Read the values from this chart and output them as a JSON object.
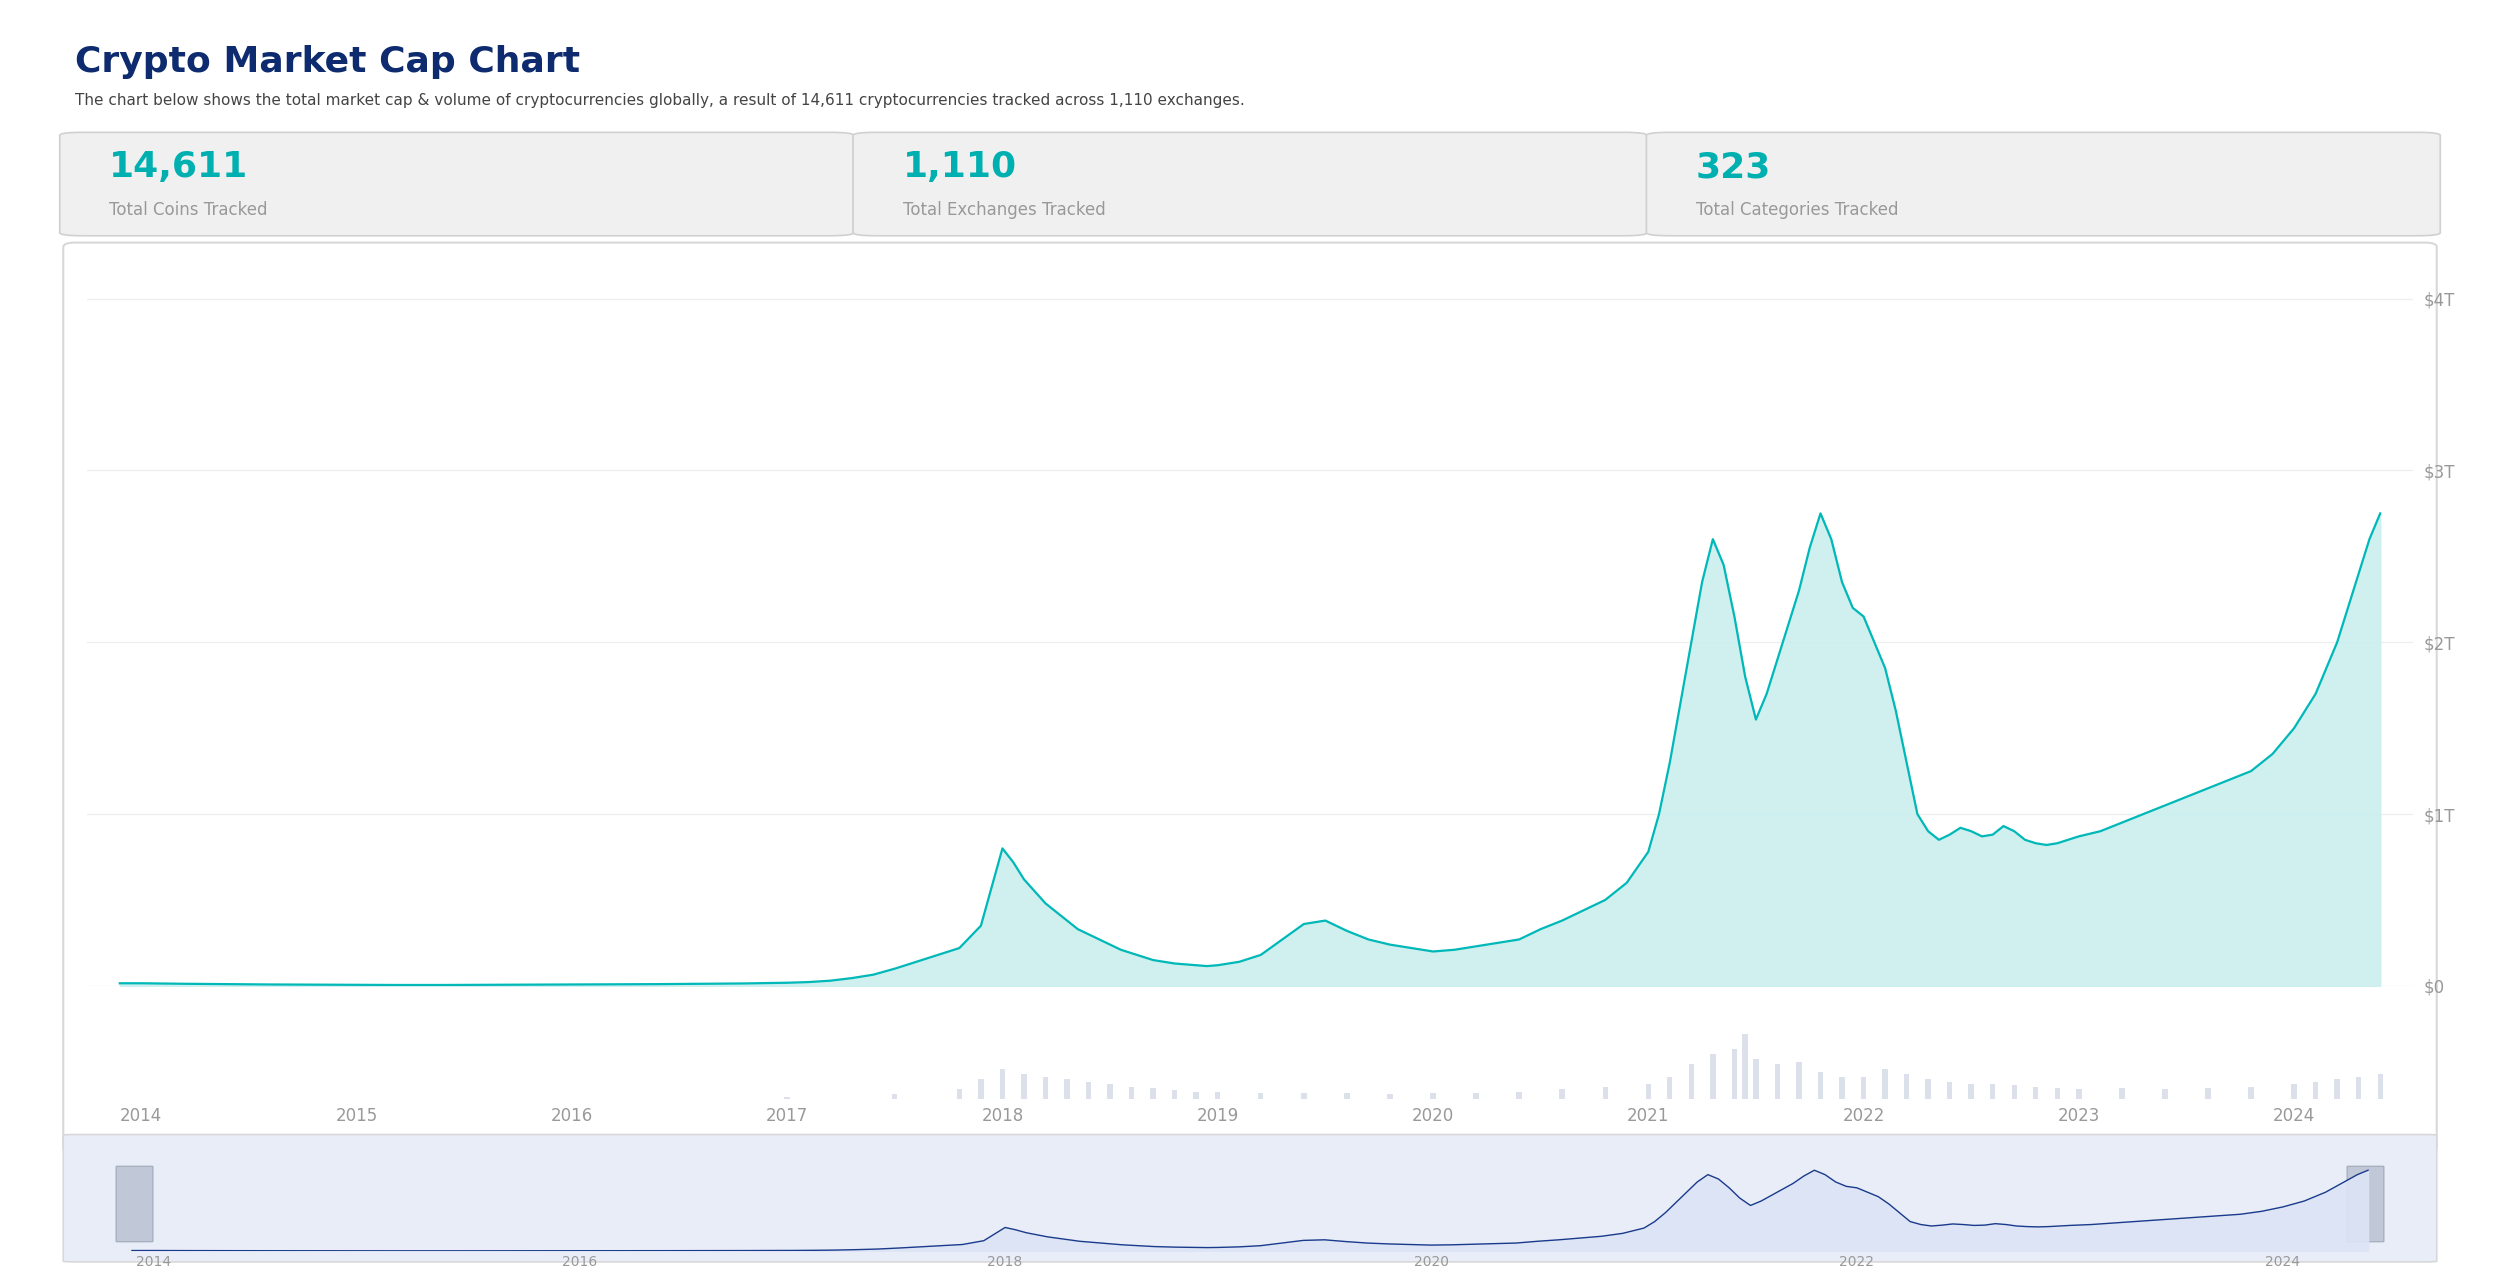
{
  "title": "Crypto Market Cap Chart",
  "subtitle": "The chart below shows the total market cap & volume of cryptocurrencies globally, a result of 14,611 cryptocurrencies tracked across 1,110 exchanges.",
  "stats": [
    {
      "value": "14,611",
      "label": "Total Coins Tracked"
    },
    {
      "value": "1,110",
      "label": "Total Exchanges Tracked"
    },
    {
      "value": "323",
      "label": "Total Categories Tracked"
    }
  ],
  "title_color": "#0d2b6e",
  "subtitle_color": "#444444",
  "stat_value_color": "#00b0b0",
  "stat_label_color": "#999999",
  "stat_box_bg": "#f0f0f0",
  "stat_box_border": "#d0d0d0",
  "chart_bg": "#ffffff",
  "outer_bg": "#ffffff",
  "line_color": "#00b8b8",
  "fill_color": "#c8eeee",
  "volume_color": "#d8dde8",
  "mini_line_color": "#1a3a8c",
  "mini_fill_color": "#dce4f5",
  "mini_bg": "#e8edf7",
  "grid_color": "#eeeeee",
  "axis_tick_color": "#999999",
  "chart_border_color": "#d8d8d8",
  "ytick_labels": [
    "$0",
    "$1T",
    "$2T",
    "$3T",
    "$4T"
  ],
  "ytick_values": [
    0,
    1,
    2,
    3,
    4
  ],
  "xtick_labels": [
    "2014",
    "2015",
    "2016",
    "2017",
    "2018",
    "2019",
    "2020",
    "2021",
    "2022",
    "2023",
    "2024"
  ],
  "xtick_positions": [
    2014,
    2015,
    2016,
    2017,
    2018,
    2019,
    2020,
    2021,
    2022,
    2023,
    2024
  ],
  "mini_xtick_labels": [
    "2014",
    "2016",
    "2018",
    "2020",
    "2022",
    "2024"
  ],
  "mini_xtick_positions": [
    2014,
    2016,
    2018,
    2020,
    2022,
    2024
  ],
  "market_cap_years": [
    2013.9,
    2014.0,
    2014.2,
    2014.4,
    2014.6,
    2014.8,
    2015.0,
    2015.2,
    2015.4,
    2015.6,
    2015.8,
    2016.0,
    2016.2,
    2016.4,
    2016.6,
    2016.8,
    2017.0,
    2017.1,
    2017.2,
    2017.3,
    2017.4,
    2017.5,
    2017.6,
    2017.7,
    2017.8,
    2017.9,
    2018.0,
    2018.05,
    2018.1,
    2018.15,
    2018.2,
    2018.25,
    2018.3,
    2018.35,
    2018.4,
    2018.45,
    2018.5,
    2018.55,
    2018.6,
    2018.65,
    2018.7,
    2018.75,
    2018.8,
    2018.85,
    2018.9,
    2018.95,
    2019.0,
    2019.1,
    2019.2,
    2019.3,
    2019.4,
    2019.5,
    2019.6,
    2019.7,
    2019.8,
    2019.9,
    2020.0,
    2020.1,
    2020.2,
    2020.3,
    2020.4,
    2020.5,
    2020.6,
    2020.7,
    2020.8,
    2020.9,
    2021.0,
    2021.05,
    2021.1,
    2021.15,
    2021.2,
    2021.25,
    2021.3,
    2021.35,
    2021.4,
    2021.45,
    2021.5,
    2021.55,
    2021.6,
    2021.65,
    2021.7,
    2021.75,
    2021.8,
    2021.85,
    2021.9,
    2021.95,
    2022.0,
    2022.05,
    2022.1,
    2022.15,
    2022.2,
    2022.25,
    2022.3,
    2022.35,
    2022.4,
    2022.45,
    2022.5,
    2022.55,
    2022.6,
    2022.65,
    2022.7,
    2022.75,
    2022.8,
    2022.85,
    2022.9,
    2022.95,
    2023.0,
    2023.1,
    2023.2,
    2023.3,
    2023.4,
    2023.5,
    2023.6,
    2023.7,
    2023.8,
    2023.9,
    2024.0,
    2024.05,
    2024.1,
    2024.15,
    2024.2,
    2024.25,
    2024.3,
    2024.35,
    2024.4
  ],
  "market_cap_values": [
    0.015,
    0.015,
    0.012,
    0.01,
    0.008,
    0.007,
    0.006,
    0.005,
    0.005,
    0.006,
    0.007,
    0.008,
    0.009,
    0.01,
    0.012,
    0.014,
    0.018,
    0.022,
    0.03,
    0.045,
    0.065,
    0.1,
    0.14,
    0.18,
    0.22,
    0.35,
    0.8,
    0.72,
    0.62,
    0.55,
    0.48,
    0.43,
    0.38,
    0.33,
    0.3,
    0.27,
    0.24,
    0.21,
    0.19,
    0.17,
    0.15,
    0.14,
    0.13,
    0.125,
    0.12,
    0.115,
    0.12,
    0.14,
    0.18,
    0.27,
    0.36,
    0.38,
    0.32,
    0.27,
    0.24,
    0.22,
    0.2,
    0.21,
    0.23,
    0.25,
    0.27,
    0.33,
    0.38,
    0.44,
    0.5,
    0.6,
    0.78,
    1.0,
    1.3,
    1.65,
    2.0,
    2.35,
    2.6,
    2.45,
    2.15,
    1.8,
    1.55,
    1.7,
    1.9,
    2.1,
    2.3,
    2.55,
    2.75,
    2.6,
    2.35,
    2.2,
    2.15,
    2.0,
    1.85,
    1.6,
    1.3,
    1.0,
    0.9,
    0.85,
    0.88,
    0.92,
    0.9,
    0.87,
    0.88,
    0.93,
    0.9,
    0.85,
    0.83,
    0.82,
    0.83,
    0.85,
    0.87,
    0.9,
    0.95,
    1.0,
    1.05,
    1.1,
    1.15,
    1.2,
    1.25,
    1.35,
    1.5,
    1.6,
    1.7,
    1.85,
    2.0,
    2.2,
    2.4,
    2.6,
    2.75
  ],
  "volume_years": [
    2013.9,
    2014.5,
    2015.0,
    2016.0,
    2017.0,
    2017.5,
    2017.8,
    2017.9,
    2018.0,
    2018.1,
    2018.2,
    2018.3,
    2018.4,
    2018.5,
    2018.6,
    2018.7,
    2018.8,
    2018.9,
    2019.0,
    2019.2,
    2019.4,
    2019.6,
    2019.8,
    2020.0,
    2020.2,
    2020.4,
    2020.6,
    2020.8,
    2021.0,
    2021.1,
    2021.2,
    2021.3,
    2021.4,
    2021.45,
    2021.5,
    2021.6,
    2021.7,
    2021.8,
    2021.9,
    2022.0,
    2022.1,
    2022.2,
    2022.3,
    2022.4,
    2022.5,
    2022.6,
    2022.7,
    2022.8,
    2022.9,
    2023.0,
    2023.2,
    2023.4,
    2023.6,
    2023.8,
    2024.0,
    2024.1,
    2024.2,
    2024.3,
    2024.4
  ],
  "volume_values": [
    0.001,
    0.001,
    0.001,
    0.001,
    0.005,
    0.01,
    0.02,
    0.04,
    0.06,
    0.05,
    0.045,
    0.04,
    0.035,
    0.03,
    0.025,
    0.022,
    0.018,
    0.015,
    0.014,
    0.012,
    0.013,
    0.012,
    0.011,
    0.012,
    0.013,
    0.015,
    0.02,
    0.025,
    0.03,
    0.045,
    0.07,
    0.09,
    0.1,
    0.13,
    0.08,
    0.07,
    0.075,
    0.055,
    0.045,
    0.045,
    0.06,
    0.05,
    0.04,
    0.035,
    0.03,
    0.03,
    0.028,
    0.025,
    0.022,
    0.02,
    0.022,
    0.02,
    0.022,
    0.025,
    0.03,
    0.035,
    0.04,
    0.045,
    0.05
  ]
}
